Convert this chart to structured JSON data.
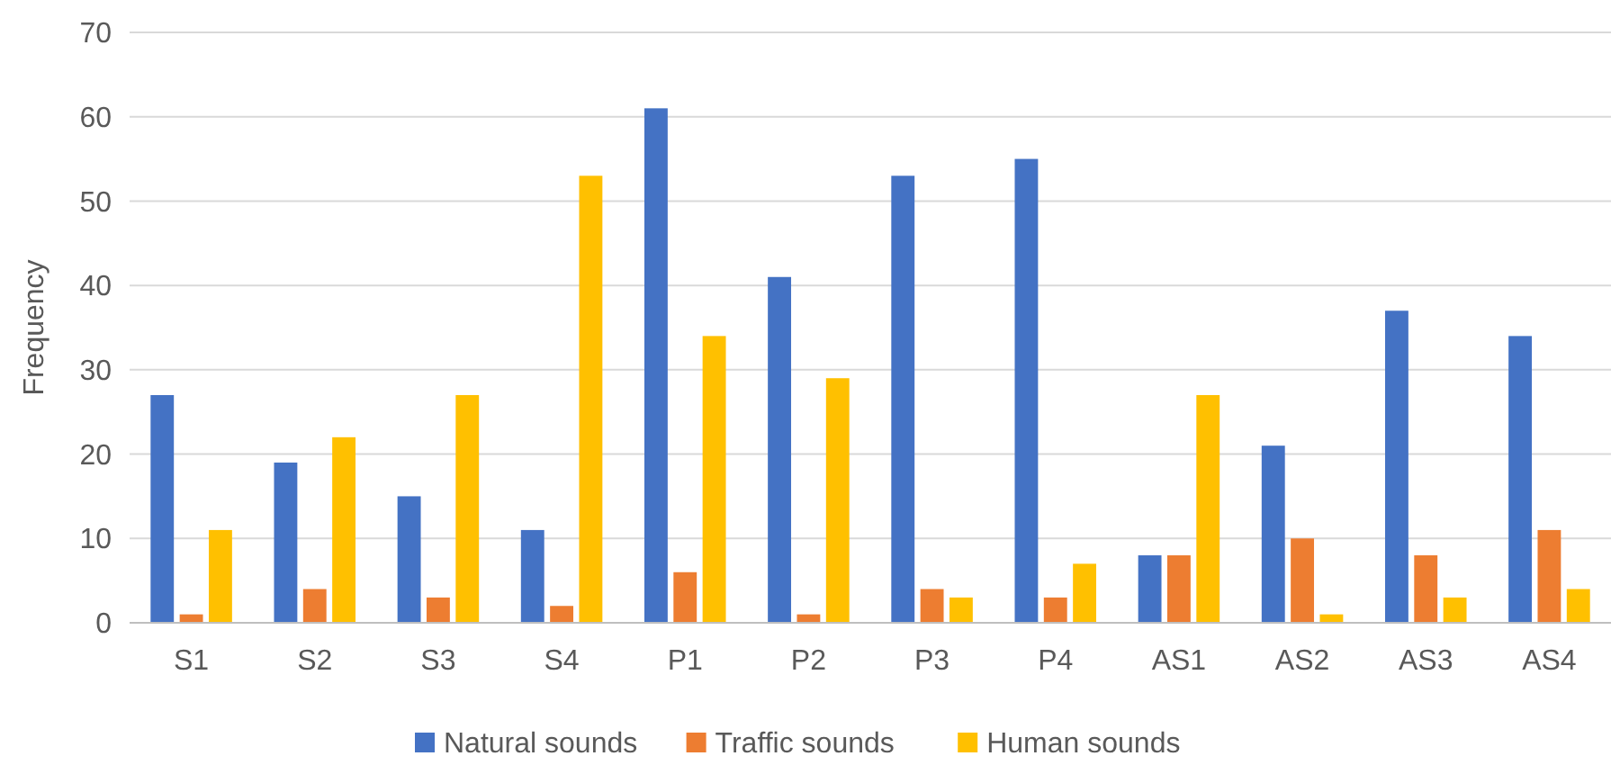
{
  "chart_data": {
    "type": "bar",
    "ylabel": "Frequency",
    "categories": [
      "S1",
      "S2",
      "S3",
      "S4",
      "P1",
      "P2",
      "P3",
      "P4",
      "AS1",
      "AS2",
      "AS3",
      "AS4"
    ],
    "series": [
      {
        "name": "Natural sounds",
        "color": "#4472c4",
        "values": [
          27,
          19,
          15,
          11,
          61,
          41,
          53,
          55,
          8,
          21,
          37,
          34
        ]
      },
      {
        "name": "Traffic sounds",
        "color": "#ed7d31",
        "values": [
          1,
          4,
          3,
          2,
          6,
          1,
          4,
          3,
          8,
          10,
          8,
          11
        ]
      },
      {
        "name": "Human sounds",
        "color": "#ffc000",
        "values": [
          11,
          22,
          27,
          53,
          34,
          29,
          3,
          7,
          27,
          1,
          3,
          4
        ]
      }
    ],
    "ylim": [
      0,
      70
    ],
    "yticks": [
      0,
      10,
      20,
      30,
      40,
      50,
      60,
      70
    ],
    "grid": "y",
    "legend": "bottom"
  }
}
